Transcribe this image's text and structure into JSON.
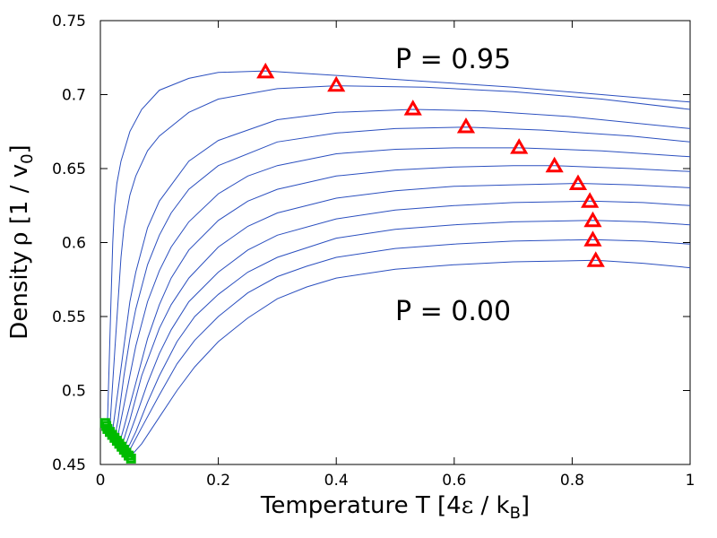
{
  "chart_data": {
    "type": "line",
    "title": "",
    "xlabel_main": "Temperature T [4",
    "xlabel_eps": "ε",
    "xlabel_mid": " / k",
    "xlabel_sub": "B",
    "xlabel_end": "]",
    "ylabel_main": "Density",
    "ylabel_rho": "ρ",
    "ylabel_mid": " [1 / v",
    "ylabel_sub": "0",
    "ylabel_end": "]",
    "xlim": [
      0,
      1
    ],
    "ylim": [
      0.45,
      0.75
    ],
    "xticks": [
      {
        "value": 0,
        "label": "0"
      },
      {
        "value": 0.2,
        "label": "0.2"
      },
      {
        "value": 0.4,
        "label": "0.4"
      },
      {
        "value": 0.6,
        "label": "0.6"
      },
      {
        "value": 0.8,
        "label": "0.8"
      },
      {
        "value": 1,
        "label": "1"
      }
    ],
    "yticks": [
      {
        "value": 0.45,
        "label": "0.45"
      },
      {
        "value": 0.5,
        "label": "0.5"
      },
      {
        "value": 0.55,
        "label": "0.55"
      },
      {
        "value": 0.6,
        "label": "0.6"
      },
      {
        "value": 0.65,
        "label": "0.65"
      },
      {
        "value": 0.7,
        "label": "0.7"
      },
      {
        "value": 0.75,
        "label": "0.75"
      }
    ],
    "grid": false,
    "annotations": [
      {
        "text": "P = 0.95",
        "x": 0.5,
        "y": 0.715
      },
      {
        "text": "P = 0.00",
        "x": 0.5,
        "y": 0.545
      }
    ],
    "isobar_color": "#2b4fbf",
    "isobars": [
      {
        "x": [
          0.012,
          0.015,
          0.018,
          0.021,
          0.024,
          0.028,
          0.035,
          0.05,
          0.07,
          0.1,
          0.15,
          0.2,
          0.28,
          0.4,
          0.55,
          0.7,
          0.85,
          1.0
        ],
        "y": [
          0.478,
          0.52,
          0.56,
          0.6,
          0.625,
          0.64,
          0.655,
          0.675,
          0.69,
          0.703,
          0.711,
          0.715,
          0.716,
          0.713,
          0.709,
          0.705,
          0.7,
          0.695
        ]
      },
      {
        "x": [
          0.016,
          0.02,
          0.025,
          0.03,
          0.035,
          0.04,
          0.05,
          0.06,
          0.08,
          0.1,
          0.15,
          0.2,
          0.3,
          0.4,
          0.55,
          0.7,
          0.85,
          1.0
        ],
        "y": [
          0.474,
          0.5,
          0.53,
          0.56,
          0.59,
          0.61,
          0.632,
          0.645,
          0.662,
          0.672,
          0.688,
          0.697,
          0.704,
          0.706,
          0.705,
          0.702,
          0.697,
          0.69
        ]
      },
      {
        "x": [
          0.02,
          0.03,
          0.04,
          0.05,
          0.06,
          0.08,
          0.1,
          0.15,
          0.2,
          0.3,
          0.4,
          0.53,
          0.65,
          0.8,
          1.0
        ],
        "y": [
          0.471,
          0.5,
          0.53,
          0.56,
          0.58,
          0.61,
          0.628,
          0.655,
          0.669,
          0.683,
          0.688,
          0.69,
          0.689,
          0.685,
          0.677
        ]
      },
      {
        "x": [
          0.024,
          0.03,
          0.04,
          0.05,
          0.06,
          0.08,
          0.1,
          0.12,
          0.15,
          0.2,
          0.3,
          0.4,
          0.5,
          0.62,
          0.75,
          0.9,
          1.0
        ],
        "y": [
          0.468,
          0.48,
          0.51,
          0.535,
          0.555,
          0.585,
          0.605,
          0.62,
          0.636,
          0.652,
          0.668,
          0.674,
          0.677,
          0.678,
          0.676,
          0.672,
          0.668
        ]
      },
      {
        "x": [
          0.028,
          0.04,
          0.06,
          0.08,
          0.1,
          0.12,
          0.15,
          0.2,
          0.25,
          0.3,
          0.4,
          0.5,
          0.6,
          0.71,
          0.85,
          1.0
        ],
        "y": [
          0.466,
          0.49,
          0.53,
          0.56,
          0.581,
          0.597,
          0.614,
          0.633,
          0.645,
          0.652,
          0.66,
          0.663,
          0.664,
          0.664,
          0.662,
          0.658
        ]
      },
      {
        "x": [
          0.032,
          0.04,
          0.06,
          0.08,
          0.1,
          0.12,
          0.15,
          0.2,
          0.25,
          0.3,
          0.4,
          0.5,
          0.6,
          0.7,
          0.77,
          0.9,
          1.0
        ],
        "y": [
          0.464,
          0.475,
          0.505,
          0.535,
          0.558,
          0.576,
          0.595,
          0.615,
          0.628,
          0.636,
          0.645,
          0.649,
          0.651,
          0.652,
          0.652,
          0.65,
          0.648
        ]
      },
      {
        "x": [
          0.036,
          0.05,
          0.07,
          0.1,
          0.12,
          0.15,
          0.2,
          0.25,
          0.3,
          0.4,
          0.5,
          0.6,
          0.7,
          0.81,
          0.9,
          1.0
        ],
        "y": [
          0.462,
          0.48,
          0.51,
          0.542,
          0.558,
          0.576,
          0.597,
          0.611,
          0.62,
          0.63,
          0.635,
          0.638,
          0.639,
          0.64,
          0.639,
          0.637
        ]
      },
      {
        "x": [
          0.04,
          0.06,
          0.08,
          0.1,
          0.12,
          0.15,
          0.2,
          0.25,
          0.3,
          0.4,
          0.5,
          0.6,
          0.7,
          0.83,
          0.92,
          1.0
        ],
        "y": [
          0.46,
          0.482,
          0.505,
          0.525,
          0.541,
          0.56,
          0.58,
          0.595,
          0.605,
          0.616,
          0.622,
          0.625,
          0.627,
          0.628,
          0.627,
          0.625
        ]
      },
      {
        "x": [
          0.043,
          0.06,
          0.08,
          0.1,
          0.13,
          0.16,
          0.2,
          0.25,
          0.3,
          0.4,
          0.5,
          0.6,
          0.7,
          0.835,
          0.92,
          1.0
        ],
        "y": [
          0.458,
          0.472,
          0.492,
          0.51,
          0.533,
          0.55,
          0.565,
          0.58,
          0.59,
          0.603,
          0.609,
          0.612,
          0.614,
          0.615,
          0.614,
          0.612
        ]
      },
      {
        "x": [
          0.046,
          0.07,
          0.1,
          0.13,
          0.16,
          0.2,
          0.25,
          0.3,
          0.35,
          0.4,
          0.5,
          0.6,
          0.7,
          0.835,
          0.92,
          1.0
        ],
        "y": [
          0.457,
          0.475,
          0.497,
          0.518,
          0.534,
          0.55,
          0.566,
          0.577,
          0.584,
          0.59,
          0.596,
          0.599,
          0.601,
          0.602,
          0.601,
          0.599
        ]
      },
      {
        "x": [
          0.05,
          0.07,
          0.1,
          0.13,
          0.16,
          0.2,
          0.25,
          0.3,
          0.35,
          0.4,
          0.5,
          0.6,
          0.7,
          0.84,
          0.92,
          1.0
        ],
        "y": [
          0.455,
          0.464,
          0.482,
          0.5,
          0.516,
          0.533,
          0.549,
          0.562,
          0.57,
          0.576,
          0.582,
          0.585,
          0.587,
          0.588,
          0.586,
          0.583
        ]
      }
    ],
    "max_density_points": {
      "marker": "triangle",
      "color": "#ff0000",
      "x": [
        0.28,
        0.4,
        0.53,
        0.62,
        0.71,
        0.77,
        0.81,
        0.83,
        0.835,
        0.835,
        0.84
      ],
      "y": [
        0.7155,
        0.7065,
        0.6905,
        0.6785,
        0.6645,
        0.652,
        0.64,
        0.628,
        0.615,
        0.602,
        0.588
      ]
    },
    "low_temperature_points": {
      "marker": "open-square",
      "color": "#00bb00",
      "x": [
        0.008,
        0.01,
        0.012,
        0.016,
        0.02,
        0.024,
        0.028,
        0.032,
        0.036,
        0.04,
        0.044,
        0.048,
        0.052
      ],
      "y": [
        0.478,
        0.476,
        0.474,
        0.472,
        0.47,
        0.468,
        0.466,
        0.464,
        0.462,
        0.46,
        0.458,
        0.456,
        0.454
      ]
    }
  }
}
